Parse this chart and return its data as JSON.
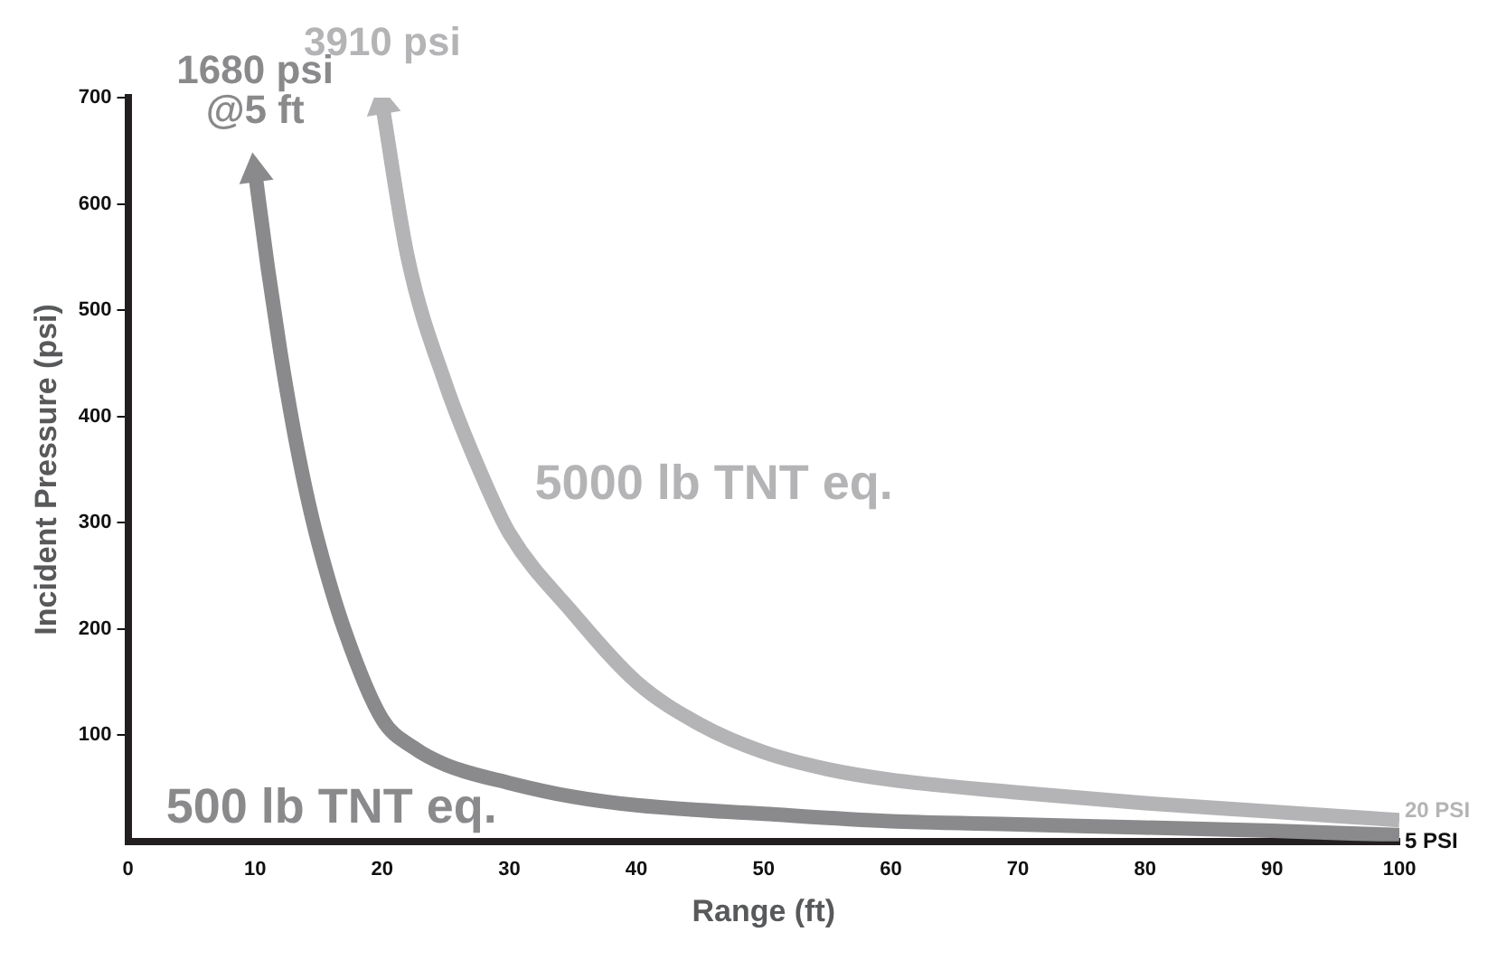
{
  "chart_data": {
    "type": "line",
    "xlabel": "Range (ft)",
    "ylabel": "Incident Pressure (psi)",
    "xlim": [
      0,
      100
    ],
    "xticks": [
      0,
      10,
      20,
      30,
      40,
      50,
      60,
      70,
      80,
      90,
      100
    ],
    "ylim": [
      0,
      700
    ],
    "yticks": [
      100,
      200,
      300,
      400,
      500,
      600,
      700
    ],
    "grid": false,
    "legend": false,
    "marker": "none",
    "line_style": "solid",
    "series": [
      {
        "name": "500 lb TNT eq.",
        "color": "#8a8a8c",
        "x": [
          10,
          11,
          12,
          13,
          14,
          15,
          17,
          20,
          22.5,
          25,
          30,
          35,
          40,
          50,
          60,
          70,
          80,
          90,
          100
        ],
        "values": [
          630,
          540,
          460,
          390,
          330,
          280,
          200,
          115,
          88,
          72,
          55,
          42,
          34,
          26,
          19,
          16,
          13,
          10,
          6
        ]
      },
      {
        "name": "5000 lb TNT eq.",
        "color": "#b4b4b6",
        "x": [
          20,
          22,
          25,
          28,
          30,
          35,
          40,
          45,
          50,
          55,
          60,
          70,
          80,
          90,
          100
        ],
        "values": [
          694,
          550,
          430,
          340,
          290,
          215,
          150,
          110,
          84,
          68,
          58,
          46,
          36,
          28,
          20
        ]
      }
    ],
    "annotations": [
      "1680 psi\n@5 ft",
      "3910 psi",
      {
        "text": "5 PSI",
        "x": 100,
        "y": 6
      },
      {
        "text": "20 PSI",
        "x": 100,
        "y": 20
      }
    ]
  }
}
